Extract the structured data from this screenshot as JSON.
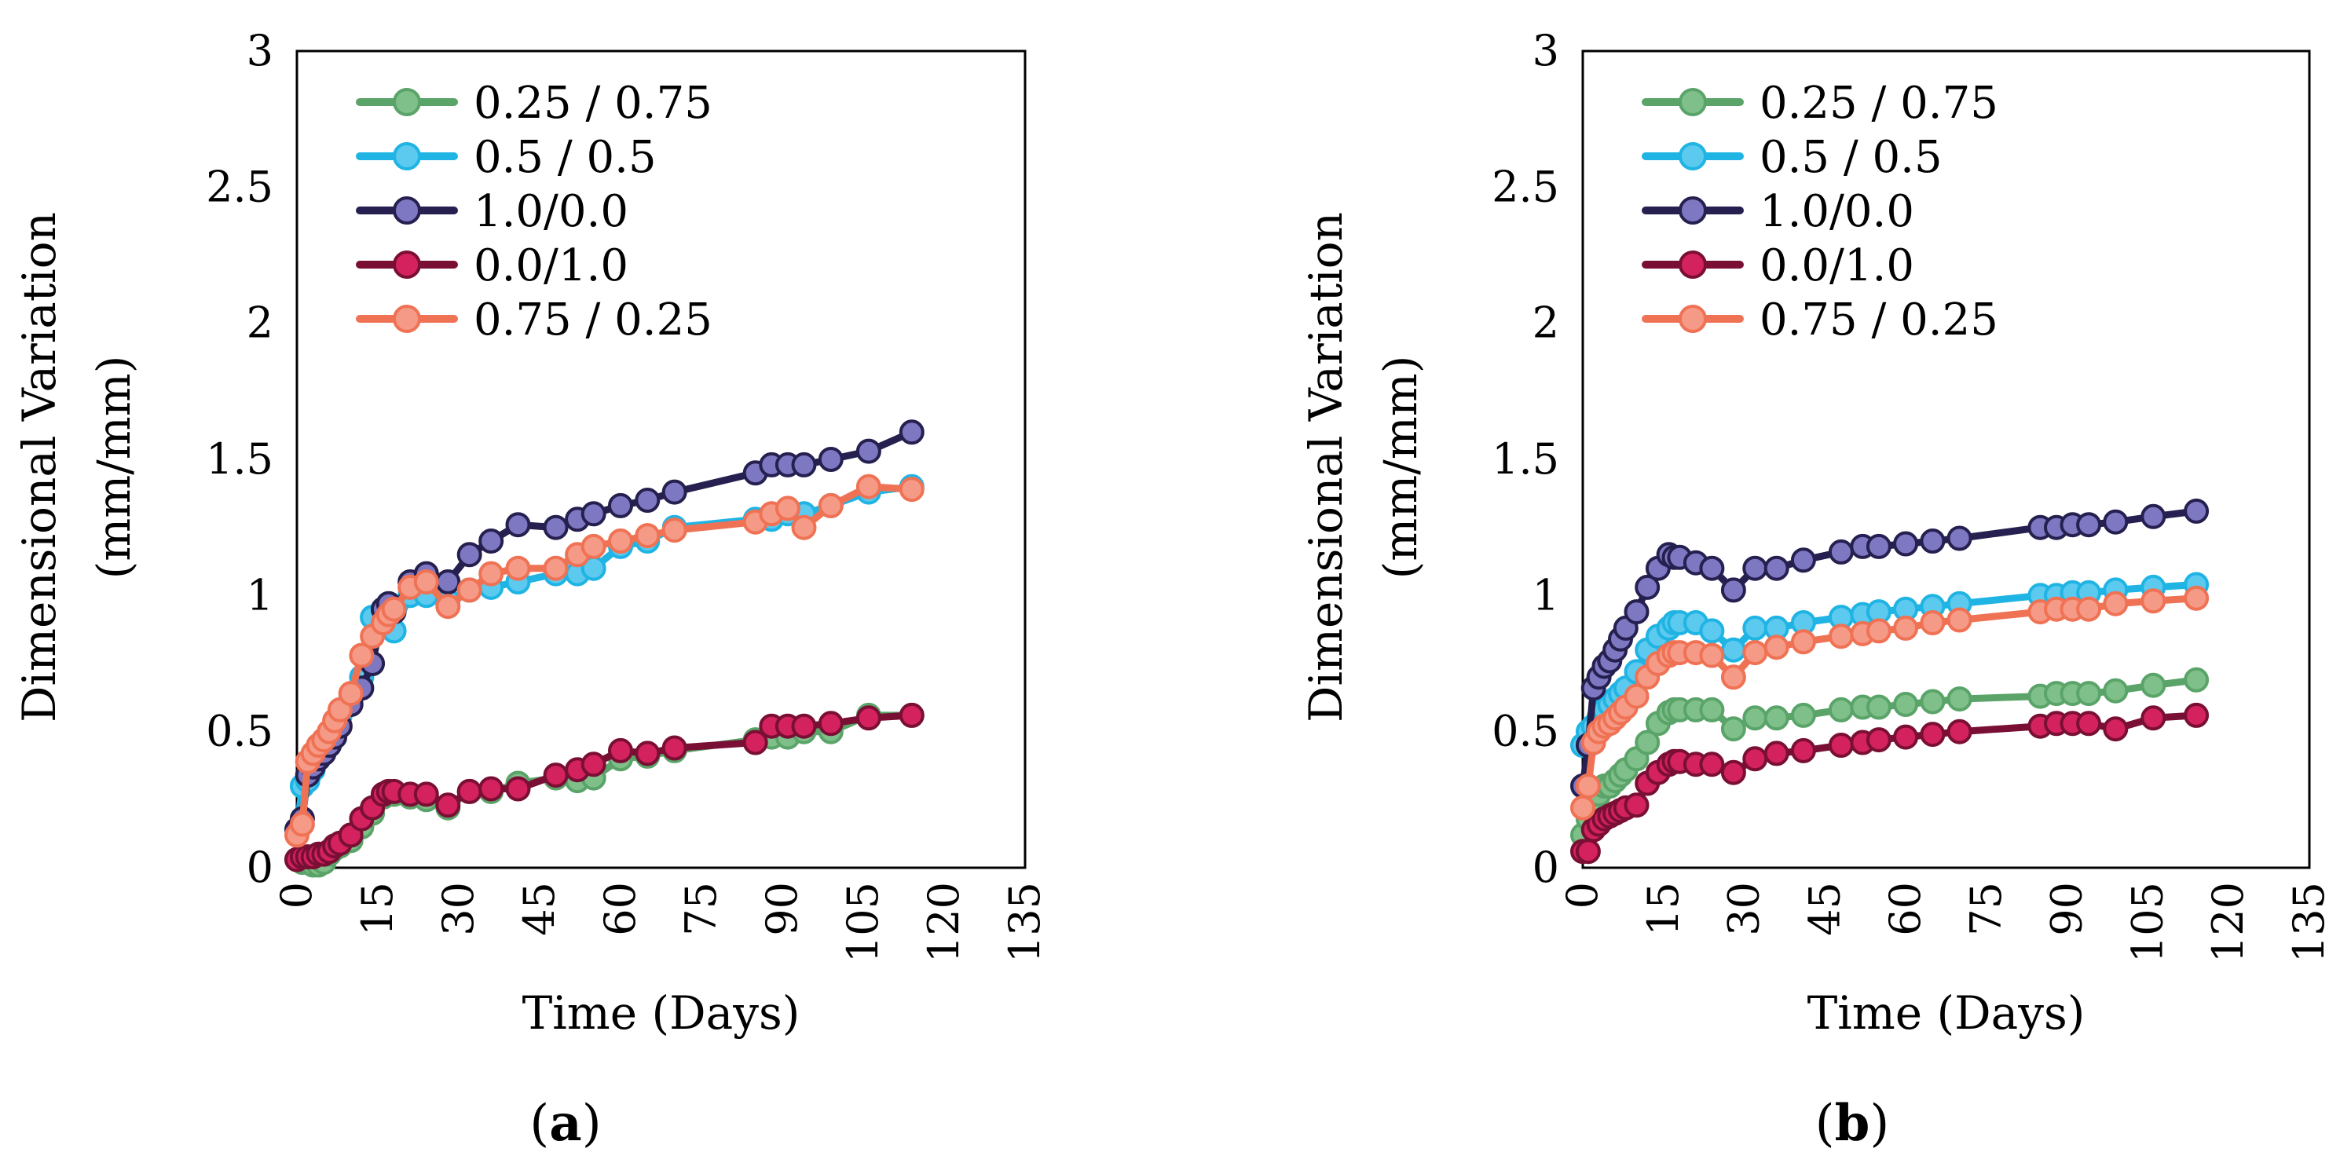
{
  "chart_data": [
    {
      "type": "line",
      "panel_label_open": "(",
      "panel_label_letter": "a",
      "panel_label_close": ")",
      "xlabel": "Time (Days)",
      "ylabel_line1": "Dimensional Variation",
      "ylabel_line2": "(mm/mm)",
      "xlim": [
        0,
        135
      ],
      "ylim": [
        0,
        3
      ],
      "xticks": [
        "0",
        "15",
        "30",
        "45",
        "60",
        "75",
        "90",
        "105",
        "120",
        "135"
      ],
      "yticks": [
        "0",
        "0.5",
        "1",
        "1.5",
        "2",
        "2.5",
        "3"
      ],
      "grid": false,
      "legend_position": "top-left",
      "series": [
        {
          "name": "0.25 / 0.75",
          "color": "#5aa469",
          "fill": "#7fc08a",
          "x": [
            0,
            1,
            2,
            3,
            4,
            5,
            6,
            7,
            8,
            10,
            12,
            14,
            16,
            17,
            18,
            21,
            24,
            28,
            32,
            36,
            41,
            48,
            52,
            55,
            60,
            65,
            70,
            85,
            88,
            91,
            94,
            99,
            106,
            114
          ],
          "y": [
            0.03,
            0.02,
            0.02,
            0.01,
            0.01,
            0.02,
            0.05,
            0.07,
            0.08,
            0.1,
            0.15,
            0.2,
            0.26,
            0.27,
            0.27,
            0.26,
            0.25,
            0.22,
            0.28,
            0.28,
            0.31,
            0.33,
            0.32,
            0.33,
            0.4,
            0.41,
            0.43,
            0.47,
            0.48,
            0.48,
            0.5,
            0.5,
            0.56,
            0.56
          ]
        },
        {
          "name": "0.5 / 0.5",
          "color": "#1fb4e3",
          "fill": "#5cc9ee",
          "x": [
            0,
            1,
            2,
            3,
            4,
            5,
            6,
            7,
            8,
            10,
            12,
            14,
            16,
            17,
            18,
            21,
            24,
            28,
            32,
            36,
            41,
            48,
            52,
            55,
            60,
            65,
            70,
            85,
            88,
            91,
            94,
            99,
            106,
            114
          ],
          "y": [
            0.14,
            0.3,
            0.32,
            0.36,
            0.4,
            0.44,
            0.48,
            0.52,
            0.56,
            0.62,
            0.7,
            0.92,
            0.95,
            0.93,
            0.87,
            1.0,
            1.0,
            0.98,
            1.02,
            1.03,
            1.05,
            1.08,
            1.08,
            1.1,
            1.18,
            1.2,
            1.25,
            1.28,
            1.28,
            1.3,
            1.3,
            1.33,
            1.38,
            1.4
          ]
        },
        {
          "name": "1.0/0.0",
          "color": "#25204f",
          "fill": "#7e78c2",
          "x": [
            0,
            1,
            2,
            3,
            4,
            5,
            6,
            7,
            8,
            10,
            12,
            14,
            16,
            17,
            18,
            21,
            24,
            28,
            32,
            36,
            41,
            48,
            52,
            55,
            60,
            65,
            70,
            85,
            88,
            91,
            94,
            99,
            106,
            114
          ],
          "y": [
            0.14,
            0.18,
            0.34,
            0.37,
            0.4,
            0.42,
            0.45,
            0.48,
            0.52,
            0.6,
            0.66,
            0.75,
            0.95,
            0.97,
            0.94,
            1.05,
            1.08,
            1.05,
            1.15,
            1.2,
            1.26,
            1.25,
            1.28,
            1.3,
            1.33,
            1.35,
            1.38,
            1.45,
            1.48,
            1.48,
            1.48,
            1.5,
            1.53,
            1.6
          ]
        },
        {
          "name": "0.0/1.0",
          "color": "#7a0f35",
          "fill": "#d3225e",
          "x": [
            0,
            1,
            2,
            3,
            4,
            5,
            6,
            7,
            8,
            10,
            12,
            14,
            16,
            17,
            18,
            21,
            24,
            28,
            32,
            36,
            41,
            48,
            52,
            55,
            60,
            65,
            70,
            85,
            88,
            91,
            94,
            99,
            106,
            114
          ],
          "y": [
            0.03,
            0.04,
            0.04,
            0.04,
            0.05,
            0.05,
            0.06,
            0.08,
            0.09,
            0.12,
            0.18,
            0.22,
            0.27,
            0.28,
            0.28,
            0.27,
            0.27,
            0.23,
            0.28,
            0.29,
            0.29,
            0.34,
            0.36,
            0.38,
            0.43,
            0.42,
            0.44,
            0.46,
            0.52,
            0.52,
            0.52,
            0.53,
            0.55,
            0.56
          ]
        },
        {
          "name": "0.75 / 0.25",
          "color": "#f07255",
          "fill": "#f59a86",
          "x": [
            0,
            1,
            2,
            3,
            4,
            5,
            6,
            7,
            8,
            10,
            12,
            14,
            16,
            17,
            18,
            21,
            24,
            28,
            32,
            36,
            41,
            48,
            52,
            55,
            60,
            65,
            70,
            85,
            88,
            91,
            94,
            99,
            106,
            114
          ],
          "y": [
            0.12,
            0.16,
            0.39,
            0.42,
            0.45,
            0.47,
            0.5,
            0.54,
            0.58,
            0.64,
            0.78,
            0.85,
            0.9,
            0.93,
            0.95,
            1.03,
            1.05,
            0.96,
            1.02,
            1.08,
            1.1,
            1.1,
            1.15,
            1.18,
            1.2,
            1.22,
            1.24,
            1.27,
            1.3,
            1.32,
            1.25,
            1.33,
            1.4,
            1.39
          ]
        }
      ]
    },
    {
      "type": "line",
      "panel_label_open": "(",
      "panel_label_letter": "b",
      "panel_label_close": ")",
      "xlabel": "Time (Days)",
      "ylabel_line1": "Dimensional Variation",
      "ylabel_line2": "(mm/mm)",
      "xlim": [
        0,
        135
      ],
      "ylim": [
        0,
        3
      ],
      "xticks": [
        "0",
        "15",
        "30",
        "45",
        "60",
        "75",
        "90",
        "105",
        "120",
        "135"
      ],
      "yticks": [
        "0",
        "0.5",
        "1",
        "1.5",
        "2",
        "2.5",
        "3"
      ],
      "grid": false,
      "legend_position": "top-left",
      "series": [
        {
          "name": "0.25 / 0.75",
          "color": "#5aa469",
          "fill": "#7fc08a",
          "x": [
            0,
            1,
            2,
            3,
            4,
            5,
            6,
            7,
            8,
            10,
            12,
            14,
            16,
            17,
            18,
            21,
            24,
            28,
            32,
            36,
            41,
            48,
            52,
            55,
            60,
            65,
            70,
            85,
            88,
            91,
            94,
            99,
            106,
            114
          ],
          "y": [
            0.12,
            0.18,
            0.22,
            0.27,
            0.3,
            0.3,
            0.32,
            0.34,
            0.36,
            0.4,
            0.46,
            0.53,
            0.57,
            0.58,
            0.58,
            0.58,
            0.58,
            0.51,
            0.55,
            0.55,
            0.56,
            0.58,
            0.59,
            0.59,
            0.6,
            0.61,
            0.62,
            0.63,
            0.64,
            0.64,
            0.64,
            0.65,
            0.67,
            0.69
          ]
        },
        {
          "name": "0.5 / 0.5",
          "color": "#1fb4e3",
          "fill": "#5cc9ee",
          "x": [
            0,
            1,
            2,
            3,
            4,
            5,
            6,
            7,
            8,
            10,
            12,
            14,
            16,
            17,
            18,
            21,
            24,
            28,
            32,
            36,
            41,
            48,
            52,
            55,
            60,
            65,
            70,
            85,
            88,
            91,
            94,
            99,
            106,
            114
          ],
          "y": [
            0.45,
            0.5,
            0.52,
            0.55,
            0.58,
            0.6,
            0.62,
            0.64,
            0.66,
            0.72,
            0.8,
            0.85,
            0.88,
            0.9,
            0.9,
            0.9,
            0.87,
            0.8,
            0.88,
            0.88,
            0.9,
            0.92,
            0.93,
            0.94,
            0.95,
            0.96,
            0.97,
            1.0,
            1.0,
            1.01,
            1.01,
            1.02,
            1.03,
            1.04
          ]
        },
        {
          "name": "1.0/0.0",
          "color": "#25204f",
          "fill": "#7e78c2",
          "x": [
            0,
            1,
            2,
            3,
            4,
            5,
            6,
            7,
            8,
            10,
            12,
            14,
            16,
            17,
            18,
            21,
            24,
            28,
            32,
            36,
            41,
            48,
            52,
            55,
            60,
            65,
            70,
            85,
            88,
            91,
            94,
            99,
            106,
            114
          ],
          "y": [
            0.3,
            0.45,
            0.66,
            0.7,
            0.74,
            0.76,
            0.8,
            0.84,
            0.88,
            0.94,
            1.03,
            1.1,
            1.15,
            1.14,
            1.14,
            1.12,
            1.1,
            1.02,
            1.1,
            1.1,
            1.13,
            1.16,
            1.18,
            1.18,
            1.19,
            1.2,
            1.21,
            1.25,
            1.25,
            1.26,
            1.26,
            1.27,
            1.29,
            1.31
          ]
        },
        {
          "name": "0.0/1.0",
          "color": "#7a0f35",
          "fill": "#d3225e",
          "x": [
            0,
            1,
            2,
            3,
            4,
            5,
            6,
            7,
            8,
            10,
            12,
            14,
            16,
            17,
            18,
            21,
            24,
            28,
            32,
            36,
            41,
            48,
            52,
            55,
            60,
            65,
            70,
            85,
            88,
            91,
            94,
            99,
            106,
            114
          ],
          "y": [
            0.06,
            0.06,
            0.14,
            0.16,
            0.18,
            0.19,
            0.2,
            0.21,
            0.22,
            0.23,
            0.31,
            0.35,
            0.38,
            0.39,
            0.39,
            0.38,
            0.38,
            0.35,
            0.4,
            0.42,
            0.43,
            0.45,
            0.46,
            0.47,
            0.48,
            0.49,
            0.5,
            0.52,
            0.53,
            0.53,
            0.53,
            0.51,
            0.55,
            0.56
          ]
        },
        {
          "name": "0.75 / 0.25",
          "color": "#f07255",
          "fill": "#f59a86",
          "x": [
            0,
            1,
            2,
            3,
            4,
            5,
            6,
            7,
            8,
            10,
            12,
            14,
            16,
            17,
            18,
            21,
            24,
            28,
            32,
            36,
            41,
            48,
            52,
            55,
            60,
            65,
            70,
            85,
            88,
            91,
            94,
            99,
            106,
            114
          ],
          "y": [
            0.22,
            0.3,
            0.46,
            0.5,
            0.52,
            0.53,
            0.55,
            0.57,
            0.59,
            0.63,
            0.7,
            0.75,
            0.78,
            0.79,
            0.79,
            0.79,
            0.78,
            0.7,
            0.79,
            0.81,
            0.83,
            0.85,
            0.86,
            0.87,
            0.88,
            0.9,
            0.91,
            0.94,
            0.95,
            0.95,
            0.95,
            0.97,
            0.98,
            0.99
          ]
        }
      ]
    }
  ]
}
